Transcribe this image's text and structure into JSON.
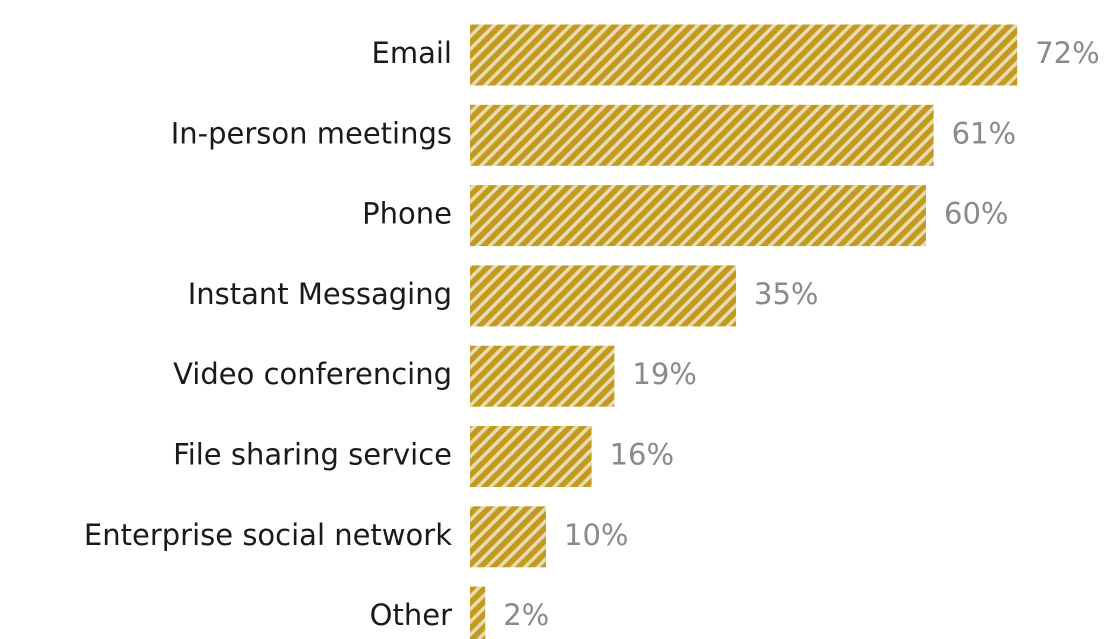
{
  "chart_data": {
    "type": "bar",
    "orientation": "horizontal",
    "categories": [
      "Email",
      "In-person meetings",
      "Phone",
      "Instant Messaging",
      "Video conferencing",
      "File sharing service",
      "Enterprise social network",
      "Other"
    ],
    "values": [
      72,
      61,
      60,
      35,
      19,
      16,
      10,
      2
    ],
    "value_labels": [
      "72%",
      "61%",
      "60%",
      "35%",
      "19%",
      "16%",
      "10%",
      "2%"
    ],
    "color": "#c49a1e"
  }
}
